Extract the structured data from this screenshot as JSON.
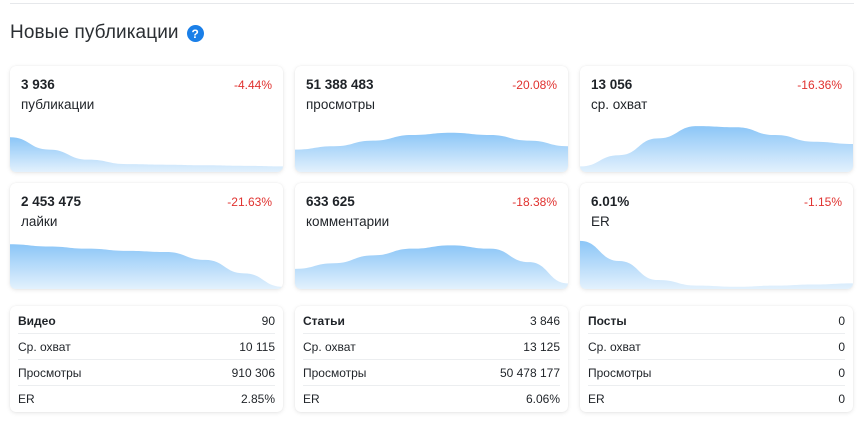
{
  "header": {
    "title": "Новые публикации",
    "help_icon": "?"
  },
  "metrics": [
    {
      "value": "3 936",
      "label": "публикации",
      "delta": "-4.44%",
      "trend": [
        0.62,
        0.4,
        0.22,
        0.14,
        0.13,
        0.12,
        0.11,
        0.1
      ]
    },
    {
      "value": "51 388 483",
      "label": "просмотры",
      "delta": "-20.08%",
      "trend": [
        0.4,
        0.46,
        0.56,
        0.66,
        0.7,
        0.66,
        0.56,
        0.46
      ]
    },
    {
      "value": "13 056",
      "label": "ср. охват",
      "delta": "-16.36%",
      "trend": [
        0.1,
        0.3,
        0.6,
        0.82,
        0.8,
        0.66,
        0.54,
        0.5
      ]
    },
    {
      "value": "2 453 475",
      "label": "лайки",
      "delta": "-21.63%",
      "trend": [
        0.8,
        0.76,
        0.72,
        0.68,
        0.66,
        0.52,
        0.28,
        0.04
      ]
    },
    {
      "value": "633 625",
      "label": "комментарии",
      "delta": "-18.38%",
      "trend": [
        0.36,
        0.46,
        0.6,
        0.72,
        0.78,
        0.72,
        0.48,
        0.1
      ]
    },
    {
      "value": "6.01%",
      "label": "ER",
      "delta": "-1.15%",
      "trend": [
        0.86,
        0.5,
        0.16,
        0.06,
        0.04,
        0.06,
        0.08,
        0.1
      ]
    }
  ],
  "stats": [
    {
      "rows": [
        {
          "name": "Видео",
          "value": "90"
        },
        {
          "name": "Ср. охват",
          "value": "10 115"
        },
        {
          "name": "Просмотры",
          "value": "910 306"
        },
        {
          "name": "ER",
          "value": "2.85%"
        }
      ]
    },
    {
      "rows": [
        {
          "name": "Статьи",
          "value": "3 846"
        },
        {
          "name": "Ср. охват",
          "value": "13 125"
        },
        {
          "name": "Просмотры",
          "value": "50 478 177"
        },
        {
          "name": "ER",
          "value": "6.06%"
        }
      ]
    },
    {
      "rows": [
        {
          "name": "Посты",
          "value": "0"
        },
        {
          "name": "Ср. охват",
          "value": "0"
        },
        {
          "name": "Просмотры",
          "value": "0"
        },
        {
          "name": "ER",
          "value": "0"
        }
      ]
    }
  ],
  "colors": {
    "accent": "#1a7fe8",
    "negative": "#e0322f",
    "spark_top": "#8cc6f7",
    "spark_bottom": "#e3f1fd"
  }
}
